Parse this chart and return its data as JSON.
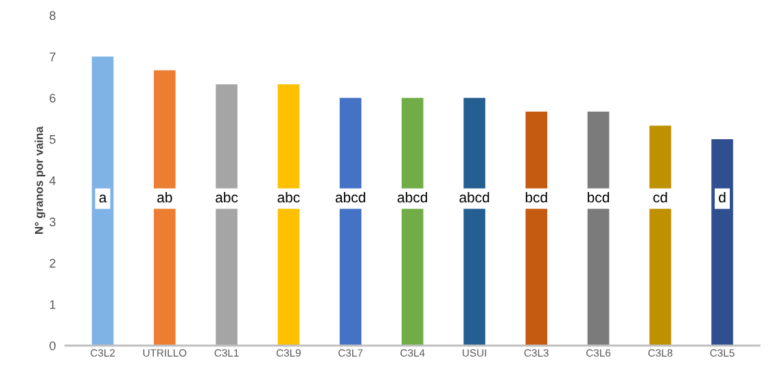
{
  "chart_data": {
    "type": "bar",
    "ylabel": "N° granos por vaina",
    "categories": [
      "C3L2",
      "UTRILLO",
      "C3L1",
      "C3L9",
      "C3L7",
      "C3L4",
      "USUI",
      "C3L3",
      "C3L6",
      "C3L8",
      "C3L5"
    ],
    "values": [
      7.0,
      6.67,
      6.33,
      6.33,
      6.0,
      6.0,
      6.0,
      5.67,
      5.67,
      5.33,
      5.0
    ],
    "colors": [
      "#7fb2e5",
      "#ed7d31",
      "#a5a5a5",
      "#ffc000",
      "#4472c4",
      "#70ad47",
      "#255e91",
      "#c55a11",
      "#7b7b7b",
      "#bf9000",
      "#2f4f8f"
    ],
    "ylim": [
      0,
      8
    ],
    "yticks": [
      0,
      1,
      2,
      3,
      4,
      5,
      6,
      7,
      8
    ],
    "grid": false,
    "annotations": [
      "a",
      "ab",
      "abc",
      "abc",
      "abcd",
      "abcd",
      "abcd",
      "bcd",
      "bcd",
      "cd",
      "d"
    ]
  }
}
